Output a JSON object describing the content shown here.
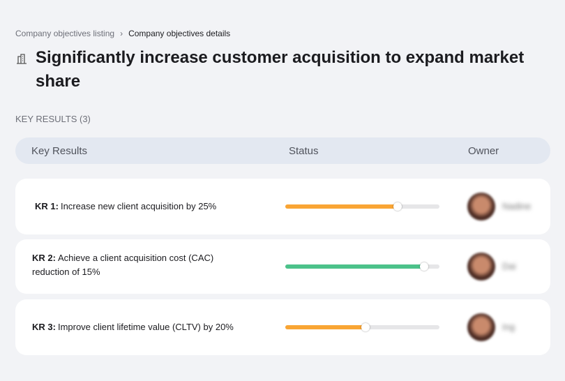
{
  "breadcrumb": [
    "Company objectives listing",
    "Company objectives details"
  ],
  "title": "Significantly increase customer acquisition to expand market share",
  "section_label": "KEY RESULTS (3)",
  "table": {
    "columns": [
      "Key Results",
      "Status",
      "Owner"
    ],
    "rows": [
      {
        "label": "KR 1:",
        "text": "Increase new client acquisition by 25%",
        "progress": 73,
        "color": "#f9a534",
        "owner": "Nadine"
      },
      {
        "label": "KR 2:",
        "text": "Achieve a client acquisition cost (CAC) reduction of 15%",
        "progress": 90,
        "color": "#4cc28a",
        "owner": "Dai"
      },
      {
        "label": "KR 3:",
        "text": "Improve client lifetime value (CLTV) by 20%",
        "progress": 52,
        "color": "#f9a534",
        "owner": "Ing"
      }
    ]
  }
}
